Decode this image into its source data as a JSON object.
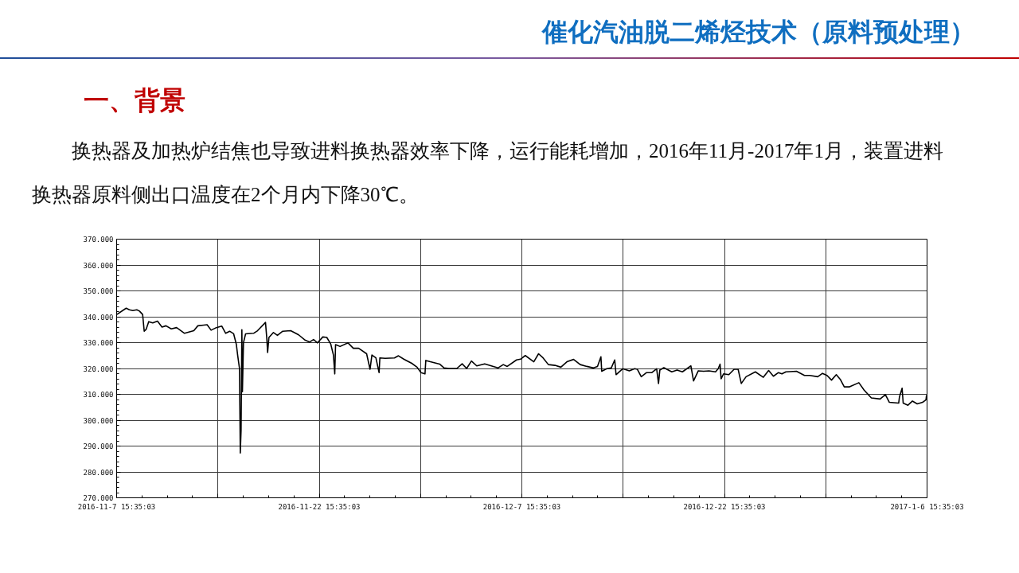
{
  "chart_data": {
    "type": "line",
    "title": "催化汽油脱二烯烃技术（原料预处理）",
    "subtitle": "一、背景",
    "annotations": [
      "换热器及加热炉结焦也导致进料换热器效率下降，运行能耗增加，2016年11月-2017年1月，装置进料换热器原料侧出口温度在2个月内下降30℃。"
    ],
    "x": [
      "2016-11-07T16:02",
      "2016-11-08T08:33",
      "2016-11-08T14:13",
      "2016-11-08T20:20",
      "2016-11-09T03:24",
      "2016-11-09T08:07",
      "2016-11-09T13:47",
      "2016-11-09T16:36",
      "2016-11-09T19:55",
      "2016-11-10T00:37",
      "2016-11-10T07:42",
      "2016-11-10T16:12",
      "2016-11-11T00:12",
      "2016-11-11T07:16",
      "2016-11-11T16:42",
      "2016-11-12T02:08",
      "2016-11-12T16:16",
      "2016-11-13T08:47",
      "2016-11-13T15:52",
      "2016-11-14T08:21",
      "2016-11-14T15:26",
      "2016-11-15T00:52",
      "2016-11-15T10:18",
      "2016-11-15T17:23",
      "2016-11-16T00:26",
      "2016-11-16T07:31",
      "2016-11-16T12:14",
      "2016-11-16T14:36",
      "2016-11-16T17:53",
      "2016-11-16T19:18",
      "2016-11-16T20:43",
      "2016-11-16T22:08",
      "2016-11-16T23:05",
      "2016-11-17T00:58",
      "2016-11-17T04:45",
      "2016-11-17T18:53",
      "2016-11-18T01:57",
      "2016-11-18T16:06",
      "2016-11-18T18:27",
      "2016-11-18T19:52",
      "2016-11-18T22:13",
      "2016-11-19T06:14",
      "2016-11-19T13:19",
      "2016-11-19T22:45",
      "2016-11-20T12:53",
      "2016-11-21T03:02",
      "2016-11-21T14:50",
      "2016-11-21T22:24",
      "2016-11-22T05:27",
      "2016-11-22T12:32",
      "2016-11-22T21:58",
      "2016-11-23T05:02",
      "2016-11-23T12:06",
      "2016-11-23T16:49",
      "2016-11-23T19:11",
      "2016-11-23T20:36",
      "2016-11-24T04:36",
      "2016-11-24T18:45",
      "2016-11-25T04:11",
      "2016-11-25T13:36",
      "2016-11-26T03:46",
      "2016-11-26T09:53",
      "2016-11-26T13:12",
      "2016-11-26T20:15",
      "2016-11-27T01:55",
      "2016-11-27T03:20",
      "2016-11-27T12:46",
      "2016-11-28T05:17",
      "2016-11-28T12:20",
      "2016-11-28T21:46",
      "2016-11-29T11:56",
      "2016-11-29T21:22",
      "2016-11-30T04:25",
      "2016-11-30T11:30",
      "2016-11-30T12:55",
      "2016-11-30T20:56",
      "2016-12-01T13:26",
      "2016-12-01T21:27",
      "2016-12-02T05:56",
      "2016-12-02T20:05",
      "2016-12-03T05:31",
      "2016-12-03T13:32",
      "2016-12-03T22:00",
      "2016-12-04T07:26",
      "2016-12-04T21:36",
      "2016-12-05T09:23",
      "2016-12-05T21:10",
      "2016-12-06T06:36",
      "2016-12-06T13:39",
      "2016-12-07T06:10",
      "2016-12-07T13:13",
      "2016-12-07T21:43",
      "2016-12-08T12:49",
      "2016-12-08T21:17",
      "2016-12-09T05:18",
      "2016-12-09T14:44",
      "2016-12-10T02:31",
      "2016-12-10T12:55",
      "2016-12-10T23:44",
      "2016-12-11T11:33",
      "2016-12-11T23:20",
      "2016-12-12T11:07",
      "2016-12-12T22:54",
      "2016-12-13T05:59",
      "2016-12-13T12:06",
      "2016-12-13T13:31",
      "2016-12-13T22:29",
      "2016-12-14T06:30",
      "2016-12-14T12:37",
      "2016-12-14T14:59",
      "2016-12-15T02:46",
      "2016-12-15T14:34",
      "2016-12-16T00:00",
      "2016-12-16T04:42",
      "2016-12-16T11:47",
      "2016-12-16T21:13",
      "2016-12-17T06:39",
      "2016-12-17T15:07",
      "2016-12-17T18:26",
      "2016-12-17T20:47",
      "2016-12-18T03:52",
      "2016-12-18T18:00",
      "2016-12-19T03:26",
      "2016-12-19T12:52",
      "2016-12-20T03:58",
      "2016-12-20T08:41",
      "2016-12-20T17:10",
      "2016-12-21T02:36",
      "2016-12-21T12:01",
      "2016-12-21T23:47",
      "2016-12-22T04:30",
      "2016-12-22T07:48",
      "2016-12-22T09:41",
      "2016-12-22T13:57",
      "2016-12-22T23:23",
      "2016-12-23T08:47",
      "2016-12-23T15:52",
      "2016-12-23T21:32",
      "2016-12-24T06:01",
      "2016-12-24T22:31",
      "2016-12-25T12:40",
      "2016-12-25T22:06",
      "2016-12-26T06:35",
      "2016-12-26T15:33",
      "2016-12-26T21:40",
      "2016-12-27T04:45",
      "2016-12-27T23:37",
      "2016-12-28T13:45",
      "2016-12-28T23:11",
      "2016-12-29T13:19",
      "2016-12-29T21:49",
      "2016-12-30T05:50",
      "2016-12-30T13:51",
      "2016-12-30T22:21",
      "2016-12-31T05:24",
      "2016-12-31T12:29",
      "2016-12-31T21:55",
      "2017-01-01T14:25",
      "2017-01-01T23:51",
      "2017-01-02T12:35",
      "2017-01-03T04:08",
      "2017-01-03T13:34",
      "2017-01-03T20:38",
      "2017-01-04T13:09",
      "2017-01-04T14:34",
      "2017-01-04T19:16",
      "2017-01-04T21:10",
      "2017-01-05T05:38",
      "2017-01-05T13:39",
      "2017-01-05T22:09",
      "2017-01-06T07:35",
      "2017-01-06T13:42",
      "2017-01-06T14:38"
    ],
    "values": [
      340.9,
      343.3,
      342.7,
      342.4,
      342.7,
      342.2,
      340.9,
      334.4,
      335.1,
      338.1,
      337.6,
      338.3,
      336.0,
      336.5,
      335.3,
      335.8,
      333.6,
      334.6,
      336.5,
      336.9,
      334.8,
      335.8,
      336.4,
      333.6,
      334.4,
      333.4,
      329.4,
      325.2,
      320.0,
      287.3,
      296.0,
      335.0,
      311.0,
      330.0,
      333.4,
      333.6,
      334.6,
      337.8,
      331.5,
      326.2,
      332.0,
      333.9,
      332.8,
      334.4,
      334.6,
      333.0,
      330.9,
      330.2,
      331.2,
      329.9,
      332.2,
      332.0,
      329.4,
      325.2,
      317.9,
      329.2,
      328.5,
      329.9,
      327.8,
      327.8,
      325.7,
      319.7,
      325.2,
      324.1,
      318.4,
      324.1,
      323.9,
      324.1,
      324.9,
      323.6,
      322.0,
      320.5,
      318.4,
      317.9,
      323.1,
      322.6,
      321.7,
      320.2,
      320.0,
      320.0,
      321.8,
      320.0,
      322.9,
      321.0,
      321.8,
      321.0,
      320.2,
      321.5,
      320.8,
      323.3,
      323.6,
      325.0,
      322.6,
      325.7,
      324.1,
      321.5,
      321.2,
      320.5,
      322.6,
      323.5,
      321.5,
      320.8,
      320.2,
      320.8,
      324.5,
      318.9,
      319.9,
      320.2,
      323.3,
      317.6,
      319.9,
      319.1,
      319.9,
      319.7,
      316.8,
      318.4,
      318.4,
      319.9,
      314.2,
      319.4,
      320.3,
      318.7,
      319.4,
      318.7,
      321.0,
      315.2,
      319.1,
      318.9,
      319.1,
      318.7,
      319.9,
      321.7,
      316.0,
      317.9,
      317.6,
      319.7,
      319.7,
      314.2,
      316.8,
      318.7,
      316.6,
      319.2,
      317.0,
      318.4,
      317.9,
      318.7,
      318.9,
      317.3,
      317.3,
      316.8,
      318.1,
      317.3,
      315.5,
      317.6,
      315.8,
      312.9,
      312.9,
      314.5,
      311.6,
      308.6,
      308.2,
      309.9,
      306.9,
      306.6,
      309.0,
      312.4,
      306.6,
      305.8,
      307.4,
      306.3,
      306.9,
      307.9,
      309.7
    ],
    "color": "#000000",
    "line_style": "solid",
    "xlim": [
      "2016-11-07T15:35:03",
      "2017-01-06T15:35:03"
    ],
    "xticks": [
      {
        "value": "2016-11-07T15:35:03",
        "label": "2016-11-7 15:35:03"
      },
      {
        "value": "2016-11-15T03:35:03",
        "label": null
      },
      {
        "value": "2016-11-22T15:35:03",
        "label": "2016-11-22 15:35:03"
      },
      {
        "value": "2016-11-30T03:35:03",
        "label": null
      },
      {
        "value": "2016-12-07T15:35:03",
        "label": "2016-12-7 15:35:03"
      },
      {
        "value": "2016-12-15T03:35:03",
        "label": null
      },
      {
        "value": "2016-12-22T15:35:03",
        "label": "2016-12-22 15:35:03"
      },
      {
        "value": "2016-12-30T03:35:03",
        "label": null
      },
      {
        "value": "2017-01-06T15:35:03",
        "label": "2017-1-6 15:35:03"
      }
    ],
    "ylim": [
      270,
      370
    ],
    "yticks": [
      {
        "value": 270,
        "label": "270.000"
      },
      {
        "value": 280,
        "label": "280.000"
      },
      {
        "value": 290,
        "label": "290.000"
      },
      {
        "value": 300,
        "label": "300.000"
      },
      {
        "value": 310,
        "label": "310.000"
      },
      {
        "value": 320,
        "label": "320.000"
      },
      {
        "value": 330,
        "label": "330.000"
      },
      {
        "value": 340,
        "label": "340.000"
      },
      {
        "value": 350,
        "label": "350.000"
      },
      {
        "value": 360,
        "label": "360.000"
      },
      {
        "value": 370,
        "label": "370.000"
      }
    ],
    "grid": true
  }
}
